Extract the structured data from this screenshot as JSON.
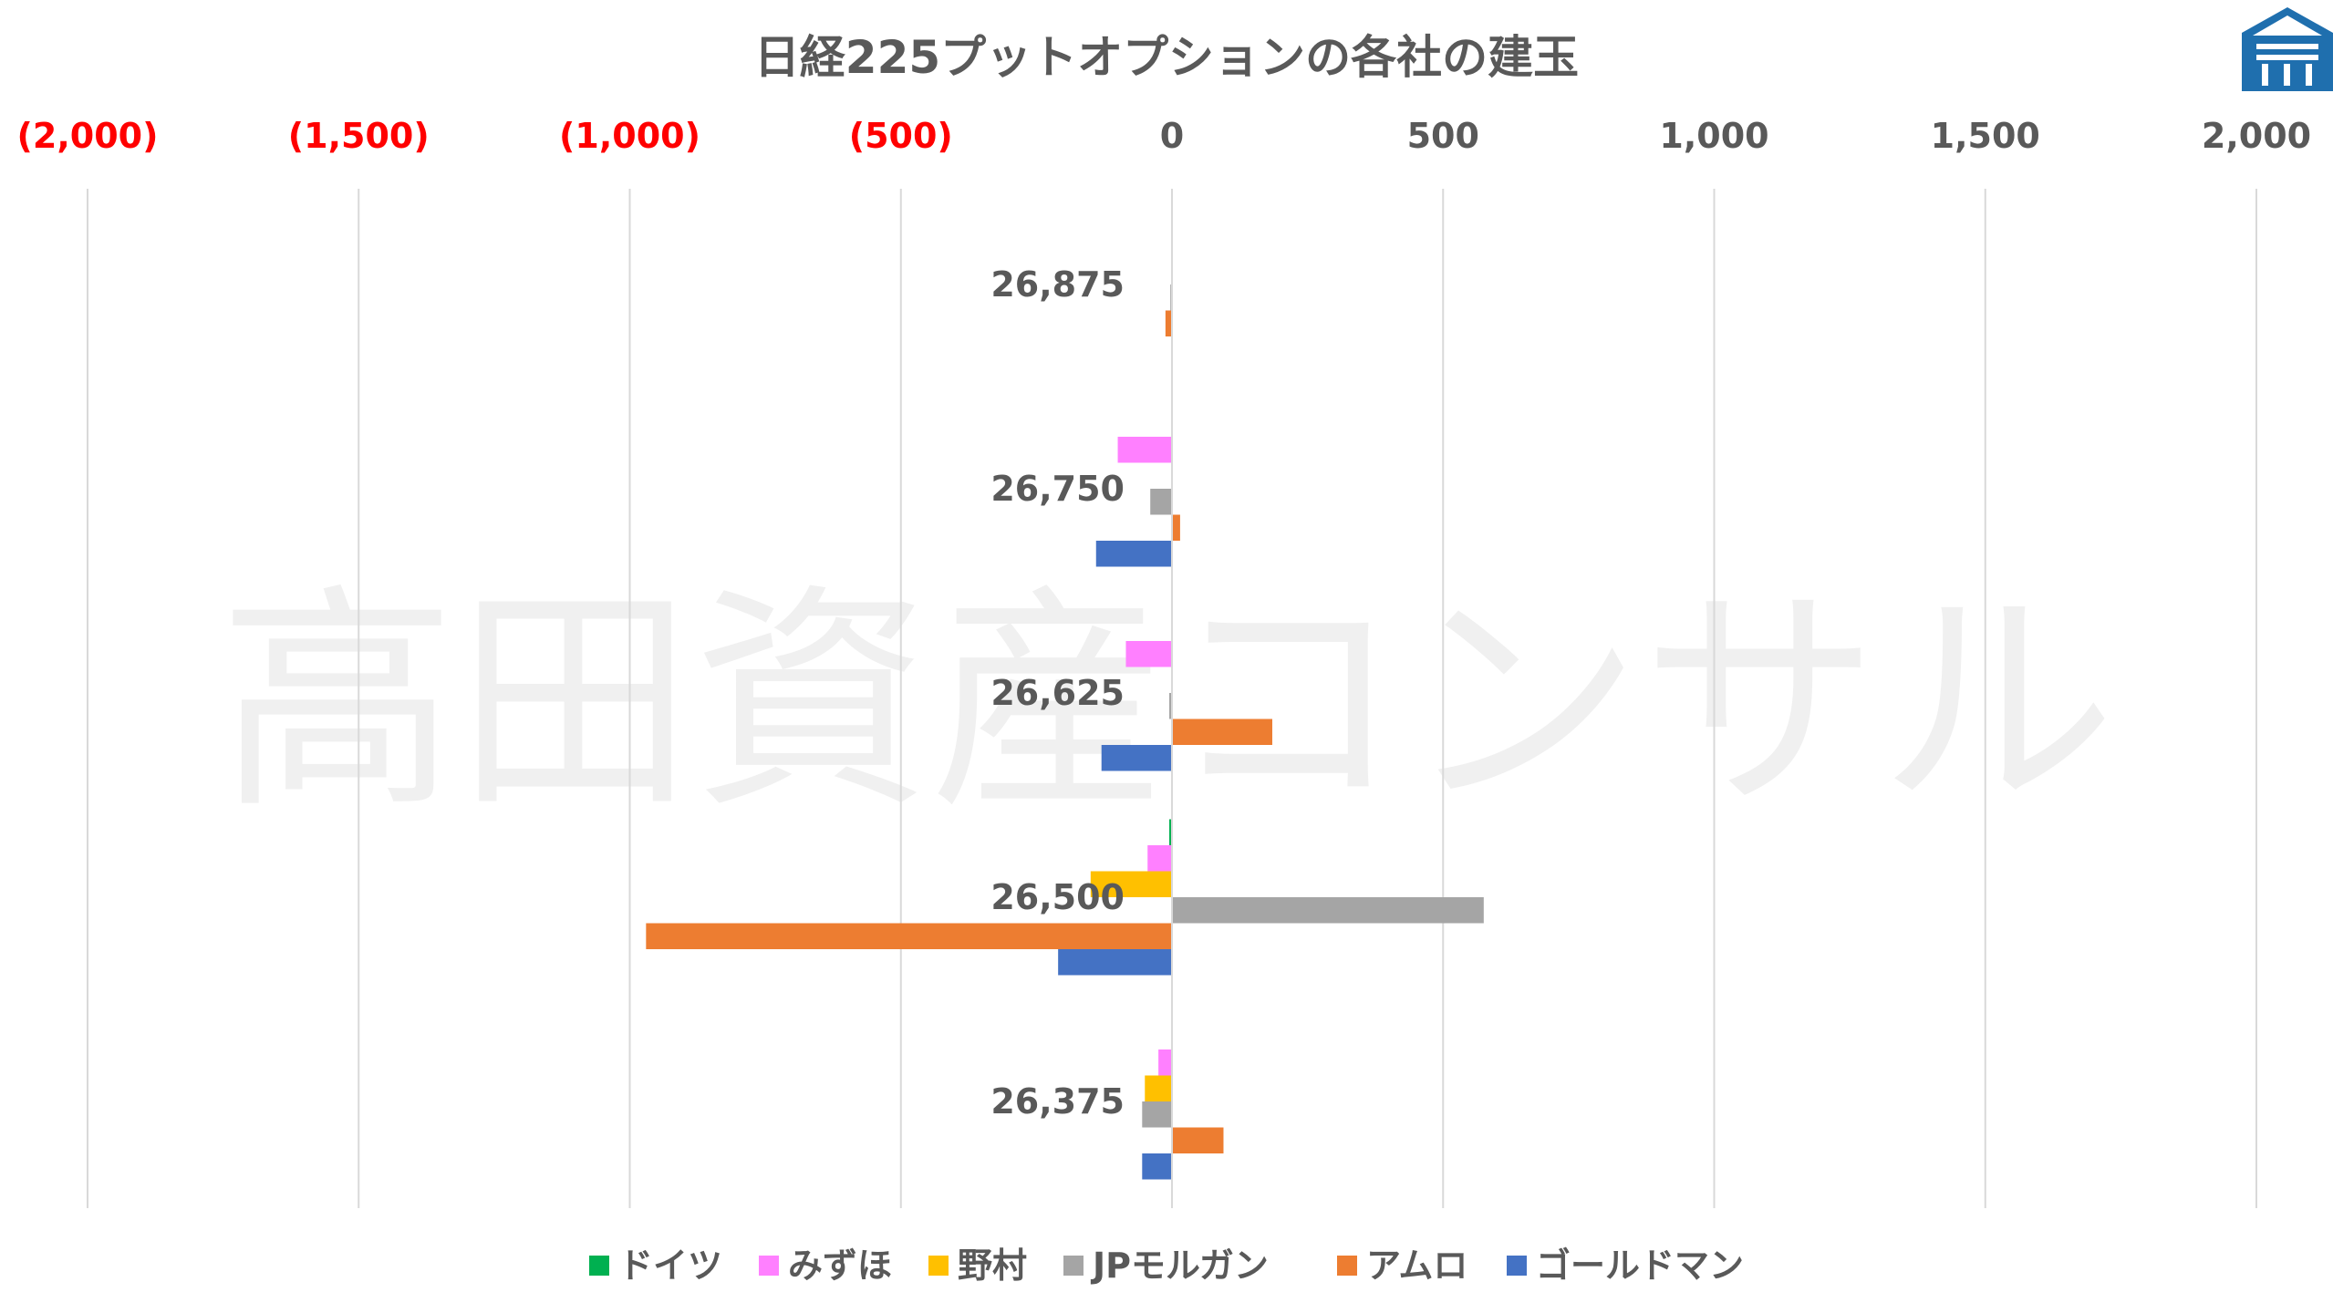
{
  "chart_data": {
    "type": "bar",
    "orientation": "horizontal",
    "title": "日経225プットオプションの各社の建玉",
    "categories": [
      "26,875",
      "26,750",
      "26,625",
      "26,500",
      "26,375"
    ],
    "xlim": [
      -2000,
      2000
    ],
    "xticks": [
      -2000,
      -1500,
      -1000,
      -500,
      0,
      500,
      1000,
      1500,
      2000
    ],
    "xtick_labels": [
      "(2,000)",
      "(1,500)",
      "(1,000)",
      "(500)",
      "0",
      "500",
      "1,000",
      "1,500",
      "2,000"
    ],
    "negative_tick_color": "#FF0000",
    "positive_tick_color": "#595959",
    "axis_position": "top",
    "grid": true,
    "legend_position": "bottom",
    "series": [
      {
        "name": "ドイツ",
        "color": "#00B050",
        "values": [
          0,
          0,
          0,
          -5,
          0
        ]
      },
      {
        "name": "みずほ",
        "color": "#FF80FF",
        "values": [
          0,
          -100,
          -85,
          -45,
          -25
        ]
      },
      {
        "name": "野村",
        "color": "#FFC000",
        "values": [
          0,
          0,
          0,
          -150,
          -50
        ]
      },
      {
        "name": "JPモルガン",
        "color": "#A5A5A5",
        "values": [
          -3,
          -40,
          -5,
          575,
          -55
        ]
      },
      {
        "name": "アムロ",
        "color": "#ED7D31",
        "values": [
          -12,
          15,
          185,
          -970,
          95
        ]
      },
      {
        "name": "ゴールドマン",
        "color": "#4472C4",
        "values": [
          0,
          -140,
          -130,
          -210,
          -55
        ]
      }
    ]
  },
  "watermark": "高田資産コンサル",
  "logo_icon": "building-logo-icon"
}
